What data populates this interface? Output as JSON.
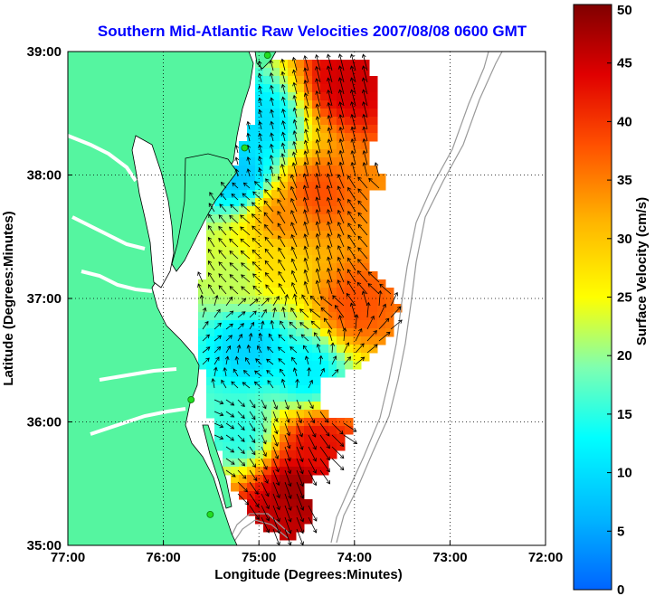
{
  "title": "Southern Mid-Atlantic Raw Velocities 2007/08/08 0600 GMT",
  "map": {
    "xlabel": "Longitude (Degrees:Minutes)",
    "ylabel": "Latitude (Degrees:Minutes)",
    "x_ticks": [
      "77:00",
      "76:00",
      "75:00",
      "74:00",
      "73:00",
      "72:00"
    ],
    "y_ticks": [
      "39:00",
      "38:00",
      "37:00",
      "36:00",
      "35:00"
    ],
    "lon_range": [
      -77,
      -72
    ],
    "lat_range": [
      35,
      39
    ],
    "grid": true,
    "land_color": "#55f5a0",
    "coast_color": "#000000",
    "isobath_color": "#999999",
    "arrow_color": "#000000",
    "station_color": "#22dd22"
  },
  "colorbar": {
    "label": "Surface Velocity (cm/s)",
    "ticks": [
      "50",
      "45",
      "40",
      "35",
      "30",
      "25",
      "20",
      "15",
      "10",
      "5",
      "0"
    ],
    "range": [
      0,
      50
    ],
    "colormap": "jet"
  },
  "stations": [
    {
      "lon": -74.91,
      "lat": 38.97
    },
    {
      "lon": -75.15,
      "lat": 38.22
    },
    {
      "lon": -75.71,
      "lat": 36.18
    },
    {
      "lon": -75.51,
      "lat": 35.25
    }
  ],
  "chart_data": {
    "type": "heatmap",
    "title": "Southern Mid-Atlantic Raw Velocities 2007/08/08 0600 GMT",
    "xlabel": "Longitude (Degrees:Minutes)",
    "ylabel": "Latitude (Degrees:Minutes)",
    "xlim": [
      -77,
      -72
    ],
    "ylim": [
      35,
      39
    ],
    "value_label": "Surface Velocity (cm/s)",
    "value_range": [
      0,
      50
    ],
    "speed_centers": [
      {
        "lon": -74.05,
        "lat": 38.75,
        "speed": 45
      },
      {
        "lon": -74.4,
        "lat": 37.85,
        "speed": 38
      },
      {
        "lon": -74.75,
        "lat": 37.65,
        "speed": 34
      },
      {
        "lon": -74.9,
        "lat": 37.3,
        "speed": 28
      },
      {
        "lon": -74.0,
        "lat": 36.95,
        "speed": 38
      },
      {
        "lon": -75.0,
        "lat": 38.4,
        "speed": 10
      },
      {
        "lon": -75.2,
        "lat": 38.0,
        "speed": 8
      },
      {
        "lon": -75.1,
        "lat": 36.6,
        "speed": 9
      },
      {
        "lon": -74.5,
        "lat": 36.4,
        "speed": 12
      },
      {
        "lon": -74.4,
        "lat": 35.8,
        "speed": 43
      },
      {
        "lon": -74.6,
        "lat": 35.45,
        "speed": 48
      },
      {
        "lon": -74.8,
        "lat": 35.2,
        "speed": 46
      },
      {
        "lon": -75.2,
        "lat": 35.9,
        "speed": 15
      },
      {
        "lon": -75.2,
        "lat": 37.2,
        "speed": 22
      }
    ]
  }
}
